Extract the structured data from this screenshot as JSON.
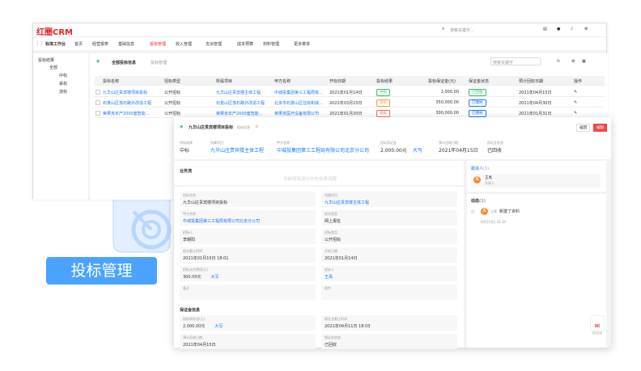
{
  "brand": "红圈CRM",
  "top": {
    "search_placeholder": "搜索关键字..."
  },
  "nav": {
    "workspace": "标准工作台",
    "items": [
      "首页",
      "经营报表",
      "基础信息",
      "投标管理",
      "收入管理",
      "支出管理",
      "成本预算",
      "材料管理",
      "更多菜单"
    ],
    "active": "投标管理"
  },
  "tree": {
    "title": "投标结果",
    "root": "全部",
    "children": [
      "中标",
      "丢标",
      "流标"
    ]
  },
  "list": {
    "view": "全部投标信息",
    "crumb": "投标管理",
    "search_placeholder": "搜索关键字",
    "columns": [
      "投标名称",
      "招标类型",
      "所属项目",
      "甲方名称",
      "开标日期",
      "投标结果",
      "投标保证金(元)",
      "保证金状态",
      "预计回收日期",
      "操作"
    ],
    "rows": [
      {
        "name": "九华山庄贵宾楼项目投标",
        "type": "公开招标",
        "project": "九华山庄贵宾楼主体工程",
        "party": "中城投集团第三工程局有...",
        "date": "2021年01月14日",
        "result": "中标",
        "result_color": "#2fbf71",
        "deposit": "2,000.00",
        "status": "已回收",
        "status_color": "#2fbf71",
        "due": "2021年04月15日"
      },
      {
        "name": "石景山区落石路外改造工程",
        "type": "公开招标",
        "project": "石景山区落石路外改造工程",
        "party": "北京市石景山区住房和城...",
        "date": "2021年03月15日",
        "result": "流标",
        "result_color": "#f59a3c",
        "deposit": "350,000.00",
        "status": "已缴纳",
        "status_color": "#1677ff",
        "due": "2021年04月30日"
      },
      {
        "name": "荣果克年产2000套智能...",
        "type": "公开招标",
        "project": "荣果克年产2000套智能...",
        "party": "荣果克医疗设备有限公司",
        "date": "2021年01月20日",
        "result": "丢标",
        "result_color": "#f56c6c",
        "deposit": "300,000.00",
        "status": "已缴纳",
        "status_color": "#1677ff",
        "due": "2021年01月31日"
      }
    ]
  },
  "detail": {
    "title": "九华山庄贵宾楼项目投标",
    "subtitle": "投标信息",
    "btn_back": "返回",
    "btn_edit": "编辑",
    "summary": [
      {
        "label": "投标结果",
        "value": "中标"
      },
      {
        "label": "所属项目",
        "value": "九华山庄贵宾楼主体工程",
        "link": true
      },
      {
        "label": "甲方名称",
        "value": "中城投集团第三工程局有限公司北京分公司",
        "link": true
      },
      {
        "label": "投标保证金",
        "value": "2,000.00元",
        "extra": "大写"
      },
      {
        "label": "预计回收日期",
        "value": "2021年04月15日"
      },
      {
        "label": "保证金状态",
        "value": "已回收"
      }
    ],
    "flow_title": "业务流",
    "flow_empty": "当前没有进行中的业务流程",
    "fields": [
      {
        "label": "投标名称",
        "value": "九华山庄贵宾楼项目投标"
      },
      {
        "label": "所属项目",
        "value": "九华山庄贵宾楼主体工程",
        "link": true
      },
      {
        "label": "甲方名称",
        "value": "中城投集团第三工程局有限公司北京分公司",
        "link": true
      },
      {
        "label": "报名类型",
        "value": "网上报名"
      },
      {
        "label": "招标人",
        "value": "李朝阳"
      },
      {
        "label": "招标类型",
        "value": "公开招标"
      },
      {
        "label": "报名截止时间",
        "value": "2021年01月10日 18:01"
      },
      {
        "label": "开标日期",
        "value": "2021年01月14日"
      },
      {
        "label": "招标文件费用(元)",
        "value": "300.00元",
        "extra": "大写"
      },
      {
        "label": "经办人",
        "value": "王禹",
        "link": true
      },
      {
        "label": "备注",
        "value": ""
      },
      {
        "label": "附件",
        "value": ""
      }
    ],
    "deposit_title": "保证金信息",
    "deposit_fields": [
      {
        "label": "投标保证金(元)",
        "value": "2,000.00元",
        "extra": "大写"
      },
      {
        "label": "保证金截止时间",
        "value": "2021年04月11日 18:03"
      },
      {
        "label": "预计回收日期",
        "value": "2021年04月15日"
      },
      {
        "label": "保证金状态",
        "value": "已回收"
      }
    ],
    "followers_title": "跟进人",
    "followers_count": "(1)",
    "follower_name": "王禹",
    "follower_role": "负责人",
    "avatar_text": "禹",
    "activity_title": "动态",
    "activity_count": "(1)",
    "activity_user": "王禹",
    "activity_text": "新建了资料",
    "activity_time": "04月13日 16:10",
    "feedback": "意见反馈"
  },
  "label": "投标管理",
  "colors": {
    "brand": "#e8232a",
    "accent": "#1677ff",
    "label_bg": "#4aa3ff"
  }
}
